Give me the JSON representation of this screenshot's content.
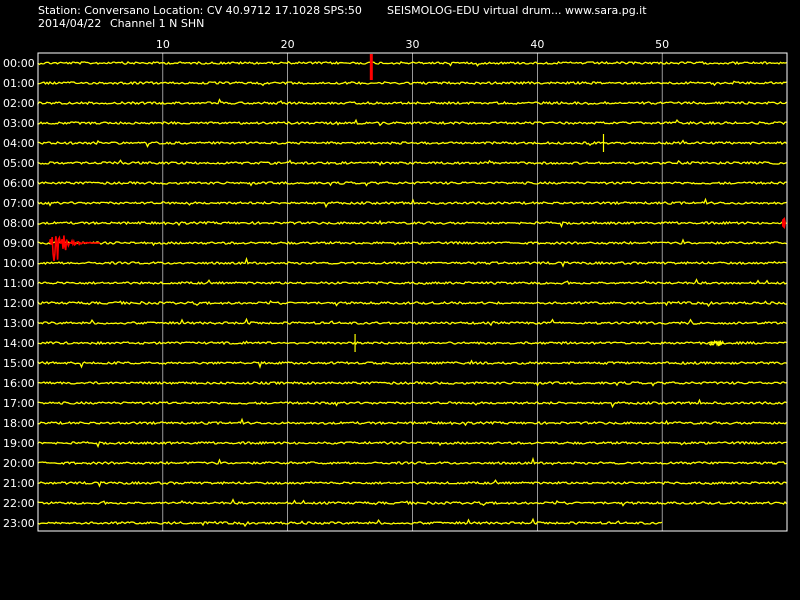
{
  "header": {
    "station_line": "Station: Conversano Location: CV 40.9712 17.1028 SPS:50",
    "date": "2014/04/22",
    "channel": "Channel 1 N SHN",
    "product": "SEISMOLOG-EDU virtual drum... www.sara.pg.it"
  },
  "colors": {
    "background": "#000000",
    "frame": "#ffffff",
    "trace": "#ffff00",
    "event": "#ff0000",
    "text": "#ffffff"
  },
  "chart_data": {
    "type": "line",
    "title": "",
    "xlabel": "",
    "ylabel": "",
    "xlim": [
      0,
      60
    ],
    "x_ticks": [
      10,
      20,
      30,
      40,
      50
    ],
    "grid": true,
    "legend": "none",
    "rows": [
      "00:00",
      "01:00",
      "02:00",
      "03:00",
      "04:00",
      "05:00",
      "06:00",
      "07:00",
      "08:00",
      "09:00",
      "10:00",
      "11:00",
      "12:00",
      "13:00",
      "14:00",
      "15:00",
      "16:00",
      "17:00",
      "18:00",
      "19:00",
      "20:00",
      "21:00",
      "22:00",
      "23:00"
    ],
    "last_row_end_minute": 50,
    "events": [
      {
        "row": "00:00",
        "minute": 26.7,
        "color": "event"
      },
      {
        "row": "04:00",
        "minute": 45.3,
        "color": "trace"
      },
      {
        "row": "08:00",
        "minute": 59.8,
        "color": "event"
      },
      {
        "row": "09:00",
        "minute": 1.0,
        "color": "event"
      },
      {
        "row": "14:00",
        "minute": 25.4,
        "color": "trace"
      },
      {
        "row": "14:00",
        "minute": 54.0,
        "color": "trace"
      }
    ]
  }
}
